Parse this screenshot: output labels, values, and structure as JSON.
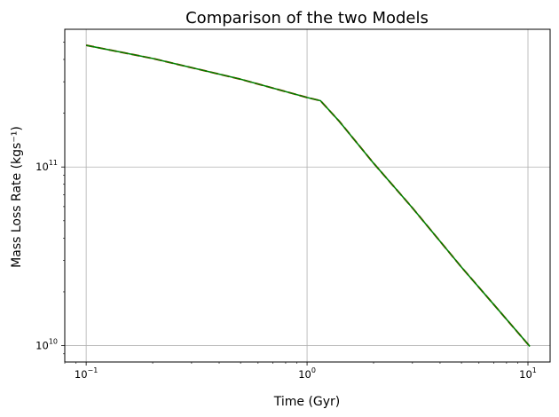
{
  "chart_data": {
    "type": "line",
    "title": "Comparison of the two Models",
    "xlabel": "Time (Gyr)",
    "ylabel": "Mass Loss Rate (kgs⁻¹)",
    "xscale": "log",
    "yscale": "log",
    "xlim": [
      0.08,
      12.6
    ],
    "ylim": [
      8100000000.0,
      590000000000.0
    ],
    "grid": true,
    "x_ticks": [
      {
        "value": 0.1,
        "base": "10",
        "exp": "−1"
      },
      {
        "value": 1,
        "base": "10",
        "exp": "0"
      },
      {
        "value": 10,
        "base": "10",
        "exp": "1"
      }
    ],
    "y_ticks": [
      {
        "value": 10000000000.0,
        "base": "10",
        "exp": "10"
      },
      {
        "value": 100000000000.0,
        "base": "10",
        "exp": "11"
      }
    ],
    "series": [
      {
        "color": "#d62000",
        "style": "dashed",
        "x": [
          0.1,
          0.2,
          0.5,
          1.0,
          1.15,
          1.4,
          2.0,
          3.0,
          5.0,
          7.0,
          10.2
        ],
        "y": [
          480000000000.0,
          405000000000.0,
          310000000000.0,
          245000000000.0,
          235000000000.0,
          180000000000.0,
          105000000000.0,
          59000000000.0,
          27500000000.0,
          17000000000.0,
          9900000000.0
        ]
      },
      {
        "color": "#008000",
        "style": "solid",
        "x": [
          0.1,
          0.2,
          0.5,
          1.0,
          1.15,
          1.4,
          2.0,
          3.0,
          5.0,
          7.0,
          10.2
        ],
        "y": [
          480000000000.0,
          405000000000.0,
          310000000000.0,
          245000000000.0,
          235000000000.0,
          180000000000.0,
          105000000000.0,
          59000000000.0,
          27500000000.0,
          17000000000.0,
          9900000000.0
        ]
      }
    ]
  }
}
